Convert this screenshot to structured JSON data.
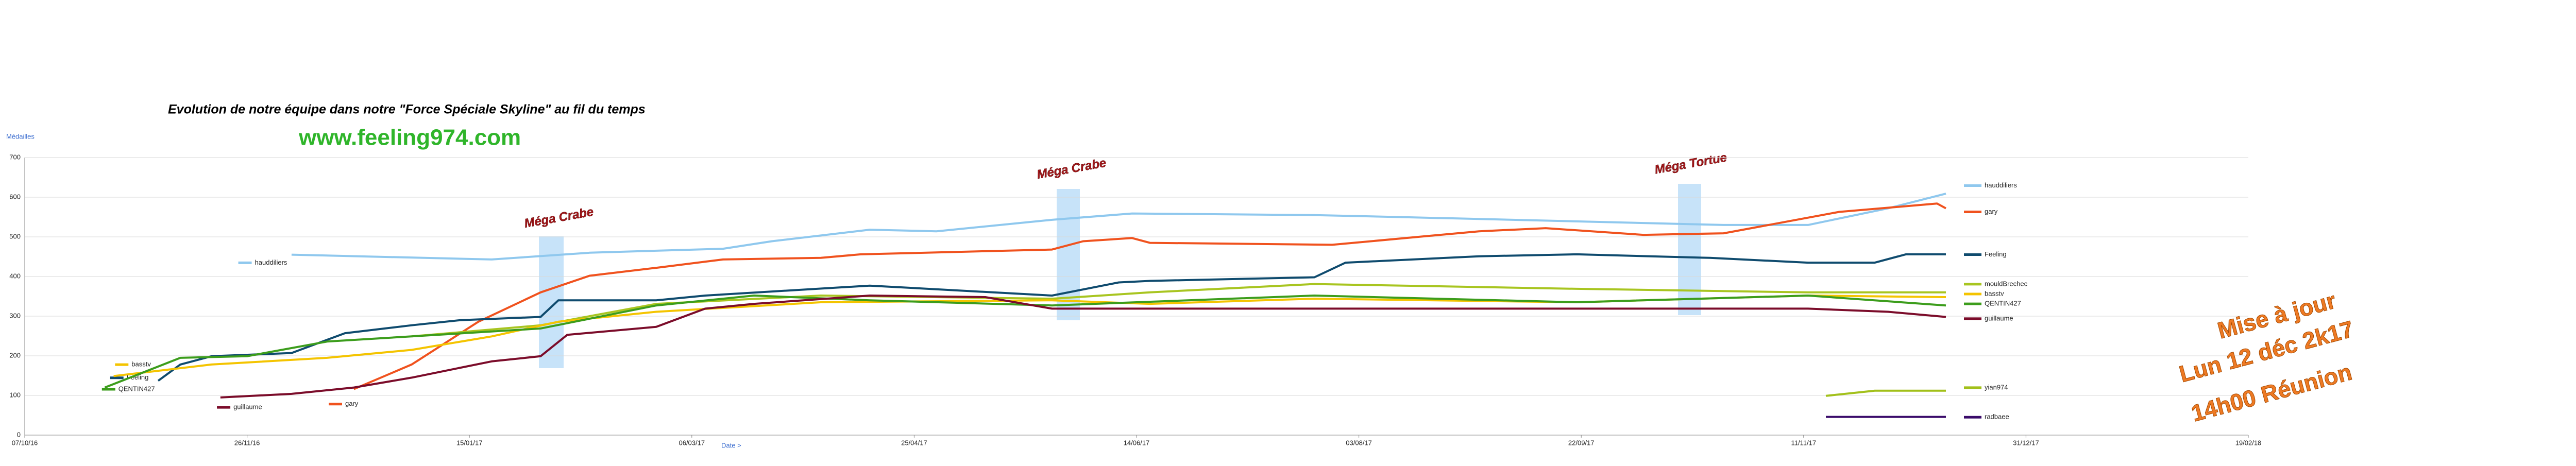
{
  "chart_data": {
    "type": "line",
    "title": "Evolution de notre équipe dans notre \"Force Spéciale Skyline\" au fil du temps",
    "subtitle": "www.feeling974.com",
    "y_label": "Médailles",
    "x_label": "Date >",
    "xlim": [
      "2016-10-07",
      "2018-02-19"
    ],
    "xticks": [
      {
        "value": "2016-10-07",
        "label": "07/10/16"
      },
      {
        "value": "2016-11-26",
        "label": "26/11/16"
      },
      {
        "value": "2017-01-15",
        "label": "15/01/17"
      },
      {
        "value": "2017-03-06",
        "label": "06/03/17"
      },
      {
        "value": "2017-04-25",
        "label": "25/04/17"
      },
      {
        "value": "2017-06-14",
        "label": "14/06/17"
      },
      {
        "value": "2017-08-03",
        "label": "03/08/17"
      },
      {
        "value": "2017-09-22",
        "label": "22/09/17"
      },
      {
        "value": "2017-11-11",
        "label": "11/11/17"
      },
      {
        "value": "2017-12-31",
        "label": "31/12/17"
      },
      {
        "value": "2018-02-19",
        "label": "19/02/18"
      }
    ],
    "ylim": [
      0,
      700
    ],
    "yticks": [
      0,
      100,
      200,
      300,
      400,
      500,
      600,
      700
    ],
    "grid": true,
    "series": [
      {
        "name": "hauddiliers",
        "color": "#8fc8ee",
        "x": [
          "2016-12-06",
          "2017-01-20",
          "2017-02-11",
          "2017-03-13",
          "2017-03-24",
          "2017-04-15",
          "2017-04-30",
          "2017-05-26",
          "2017-06-13",
          "2017-07-24",
          "2017-08-12",
          "2017-10-24",
          "2017-11-12",
          "2017-11-30",
          "2017-12-13"
        ],
        "values": [
          455,
          443,
          460,
          470,
          489,
          518,
          514,
          543,
          559,
          555,
          550,
          530,
          530,
          572,
          609
        ]
      },
      {
        "name": "gary",
        "color": "#f0521e",
        "x": [
          "2016-12-20",
          "2017-01-02",
          "2017-01-17",
          "2017-01-31",
          "2017-02-11",
          "2017-02-26",
          "2017-03-13",
          "2017-04-04",
          "2017-04-13",
          "2017-05-26",
          "2017-06-02",
          "2017-06-13",
          "2017-06-17",
          "2017-07-28",
          "2017-08-30",
          "2017-09-14",
          "2017-10-06",
          "2017-10-24",
          "2017-11-19",
          "2017-12-11",
          "2017-12-13"
        ],
        "values": [
          116,
          178,
          286,
          360,
          402,
          422,
          443,
          447,
          456,
          468,
          489,
          497,
          485,
          480,
          514,
          522,
          505,
          509,
          563,
          584,
          572
        ]
      },
      {
        "name": "Feeling",
        "color": "#0f4b6e",
        "x": [
          "2016-11-06",
          "2016-11-11",
          "2016-11-18",
          "2016-12-06",
          "2016-12-18",
          "2017-01-02",
          "2017-01-13",
          "2017-01-31",
          "2017-02-04",
          "2017-02-26",
          "2017-03-09",
          "2017-04-15",
          "2017-05-26",
          "2017-06-10",
          "2017-06-17",
          "2017-07-24",
          "2017-07-31",
          "2017-08-30",
          "2017-09-21",
          "2017-10-21",
          "2017-11-12",
          "2017-11-27",
          "2017-12-04",
          "2017-12-13"
        ],
        "values": [
          137,
          178,
          199,
          207,
          257,
          277,
          290,
          298,
          340,
          340,
          352,
          377,
          352,
          385,
          389,
          398,
          435,
          451,
          456,
          447,
          435,
          435,
          456,
          456
        ]
      },
      {
        "name": "mouldBrechec",
        "color": "#a8c520",
        "x": [
          "2017-01-02",
          "2017-01-31",
          "2017-02-26",
          "2017-04-04",
          "2017-05-26",
          "2017-06-17",
          "2017-07-24",
          "2017-09-21",
          "2017-11-12",
          "2017-12-13"
        ],
        "values": [
          249,
          277,
          331,
          352,
          344,
          360,
          381,
          369,
          360,
          360
        ]
      },
      {
        "name": "basstv",
        "color": "#f4c400",
        "x": [
          "2016-10-27",
          "2016-11-18",
          "2016-12-14",
          "2017-01-02",
          "2017-01-20",
          "2017-02-04",
          "2017-02-26",
          "2017-04-04",
          "2017-05-26",
          "2017-06-17",
          "2017-07-24",
          "2017-09-21",
          "2017-11-12",
          "2017-12-13"
        ],
        "values": [
          149,
          178,
          195,
          215,
          249,
          286,
          311,
          335,
          340,
          331,
          344,
          335,
          352,
          348
        ]
      },
      {
        "name": "QENTIN427",
        "color": "#3c9d1c",
        "x": [
          "2016-10-25",
          "2016-11-11",
          "2016-11-26",
          "2016-12-14",
          "2017-01-02",
          "2017-01-31",
          "2017-02-26",
          "2017-03-20",
          "2017-04-15",
          "2017-05-26",
          "2017-07-24",
          "2017-09-21",
          "2017-11-12",
          "2017-12-13"
        ],
        "values": [
          120,
          195,
          199,
          236,
          249,
          269,
          327,
          352,
          340,
          327,
          352,
          335,
          352,
          327
        ]
      },
      {
        "name": "guillaume",
        "color": "#7b0c2a",
        "x": [
          "2016-11-20",
          "2016-12-06",
          "2016-12-20",
          "2017-01-02",
          "2017-01-20",
          "2017-01-31",
          "2017-02-06",
          "2017-02-26",
          "2017-03-09",
          "2017-03-20",
          "2017-04-15",
          "2017-05-11",
          "2017-05-26",
          "2017-07-24",
          "2017-11-12",
          "2017-11-30",
          "2017-12-13"
        ],
        "values": [
          95,
          104,
          120,
          145,
          186,
          199,
          253,
          273,
          319,
          331,
          352,
          348,
          319,
          319,
          319,
          311,
          298
        ]
      },
      {
        "name": "yian974",
        "color": "#a2c01a",
        "x": [
          "2017-11-16",
          "2017-11-27",
          "2017-12-13"
        ],
        "values": [
          99,
          112,
          112
        ]
      },
      {
        "name": "radbaee",
        "color": "#3a0b6a",
        "x": [
          "2017-11-16",
          "2017-12-13"
        ],
        "values": [
          46,
          46
        ]
      }
    ],
    "annotations": [
      "Méga Crabe",
      "Méga Crabe",
      "Méga Tortue"
    ],
    "update_note": [
      "Mise à jour",
      "Lun 12 déc 2k17",
      "14h00 Réunion"
    ]
  }
}
